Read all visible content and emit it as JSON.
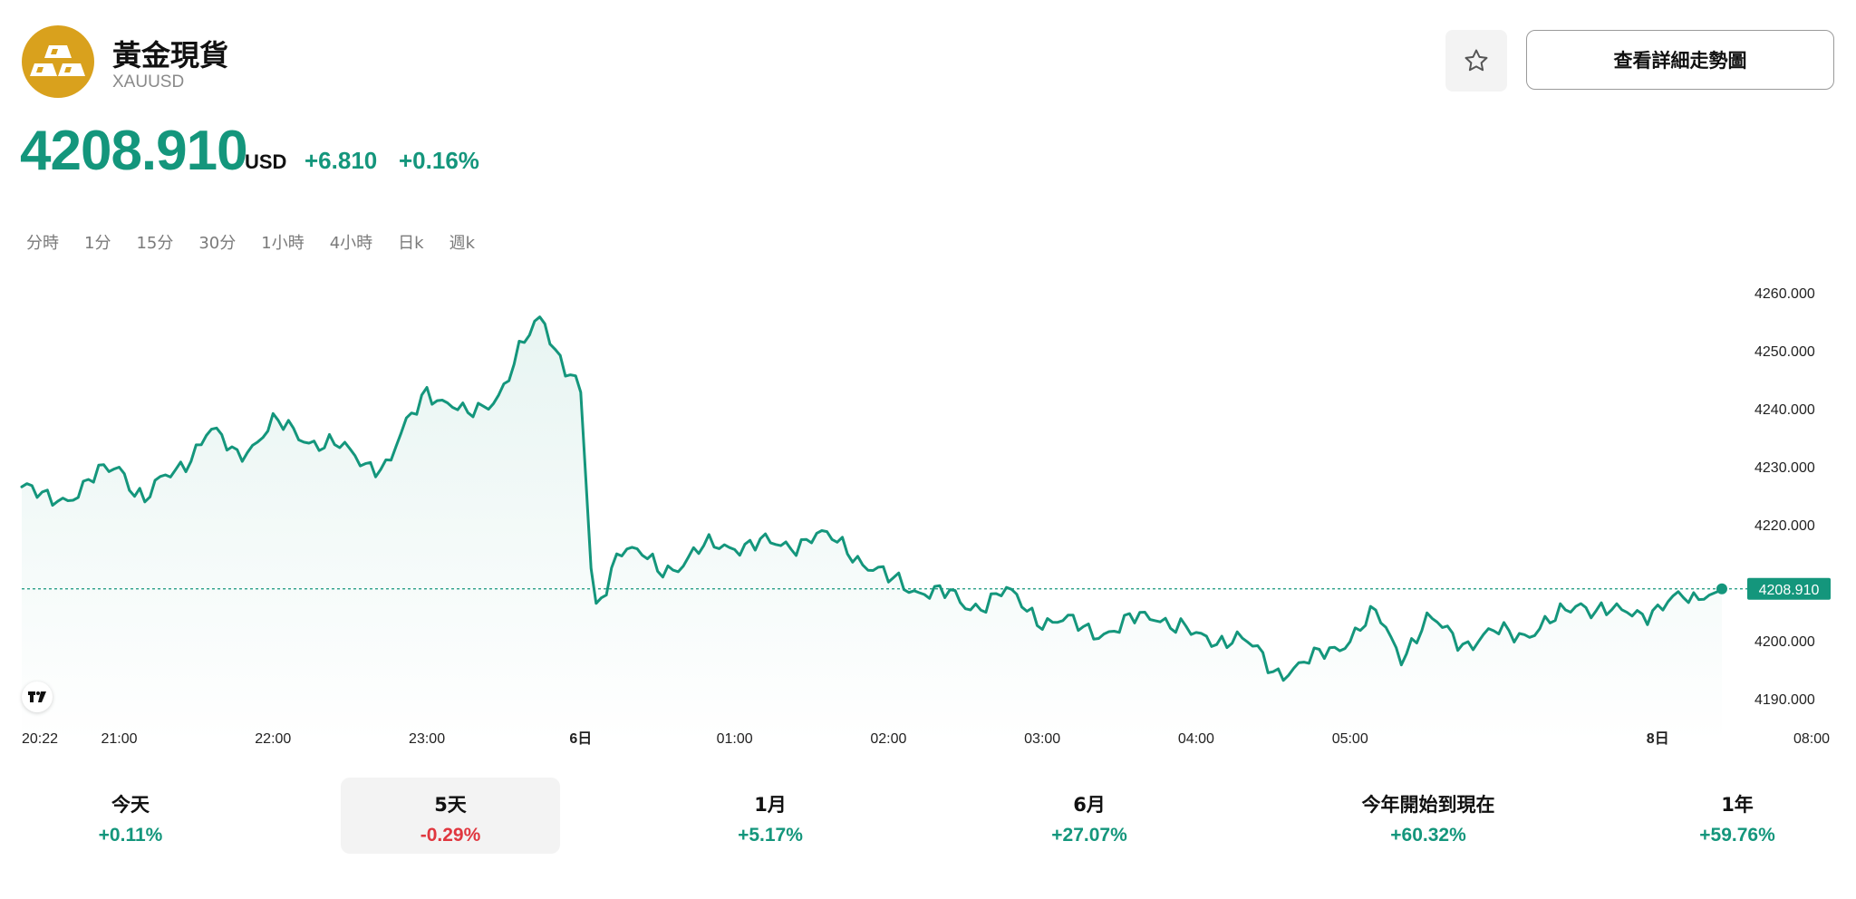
{
  "header": {
    "title": "黃金現貨",
    "symbol": "XAUUSD",
    "detail_button_label": "查看詳細走勢圖",
    "favorite_icon": "star-icon",
    "logo_icon": "gold-bars-icon"
  },
  "quote": {
    "price": "4208.910",
    "currency": "USD",
    "change": "+6.810",
    "change_percent": "+0.16%"
  },
  "intervals": [
    "分時",
    "1分",
    "15分",
    "30分",
    "1小時",
    "4小時",
    "日k",
    "週k"
  ],
  "periods": [
    {
      "label": "今天",
      "value": "+0.11%",
      "direction": "up"
    },
    {
      "label": "5天",
      "value": "-0.29%",
      "direction": "down",
      "active": true
    },
    {
      "label": "1月",
      "value": "+5.17%",
      "direction": "up"
    },
    {
      "label": "6月",
      "value": "+27.07%",
      "direction": "up"
    },
    {
      "label": "今年開始到現在",
      "value": "+60.32%",
      "direction": "up"
    },
    {
      "label": "1年",
      "value": "+59.76%",
      "direction": "up"
    }
  ],
  "colors": {
    "up": "#14967c",
    "down": "#e0373f",
    "line": "#14967c",
    "logo": "#d9a11d"
  },
  "chart_data": {
    "type": "area",
    "series": [
      {
        "x": [
          "20:22",
          "20:30",
          "20:45",
          "21:00",
          "21:10",
          "21:20",
          "21:35",
          "21:45",
          "22:00",
          "22:15",
          "22:30",
          "22:45",
          "23:00",
          "23:15",
          "23:30",
          "23:45",
          "23:50",
          "0:00",
          "0:05",
          "0:10",
          "0:15",
          "0:30",
          "0:45",
          "1:00",
          "1:15",
          "1:30",
          "1:45",
          "2:00",
          "2:15",
          "2:30",
          "2:45",
          "3:00",
          "3:15",
          "3:30",
          "3:45",
          "4:00",
          "4:15",
          "4:30",
          "4:45",
          "5:00",
          "5:10",
          "5:20",
          "5:30",
          "5:45",
          "6:00",
          "6:10",
          "6:20",
          "6:30",
          "6:45",
          "7:00",
          "7:15",
          "7:25"
        ],
        "y": [
          4226.5,
          4224.0,
          4226.0,
          4230.5,
          4224.0,
          4228.5,
          4236.0,
          4232.0,
          4237.0,
          4235.0,
          4232.0,
          4230.0,
          4244.0,
          4238.0,
          4244.0,
          4256.5,
          4251.0,
          4242.0,
          4204.0,
          4210.0,
          4217.0,
          4212.0,
          4215.0,
          4217.0,
          4216.0,
          4218.0,
          4216.0,
          4210.0,
          4209.0,
          4206.0,
          4208.0,
          4204.0,
          4202.0,
          4202.0,
          4205.0,
          4200.0,
          4201.0,
          4195.0,
          4196.0,
          4201.0,
          4204.0,
          4198.0,
          4203.0,
          4200.0,
          4201.0,
          4202.0,
          4203.0,
          4207.0,
          4204.0,
          4206.0,
          4207.0,
          4208.91
        ]
      }
    ],
    "last_price_label": "4208.910",
    "y_ticks": [
      "4260.000",
      "4250.000",
      "4240.000",
      "4230.000",
      "4220.000",
      "4200.000",
      "4190.000"
    ],
    "x_ticks": [
      {
        "label": "20:22",
        "bold": false
      },
      {
        "label": "21:00",
        "bold": false
      },
      {
        "label": "22:00",
        "bold": false
      },
      {
        "label": "23:00",
        "bold": false
      },
      {
        "label": "6日",
        "bold": true
      },
      {
        "label": "01:00",
        "bold": false
      },
      {
        "label": "02:00",
        "bold": false
      },
      {
        "label": "03:00",
        "bold": false
      },
      {
        "label": "04:00",
        "bold": false
      },
      {
        "label": "05:00",
        "bold": false
      },
      {
        "label": "8日",
        "bold": true
      },
      {
        "label": "08:00",
        "bold": false
      }
    ],
    "ylim": [
      4187,
      4262
    ],
    "grid": false,
    "reference_line": 4208.91
  }
}
